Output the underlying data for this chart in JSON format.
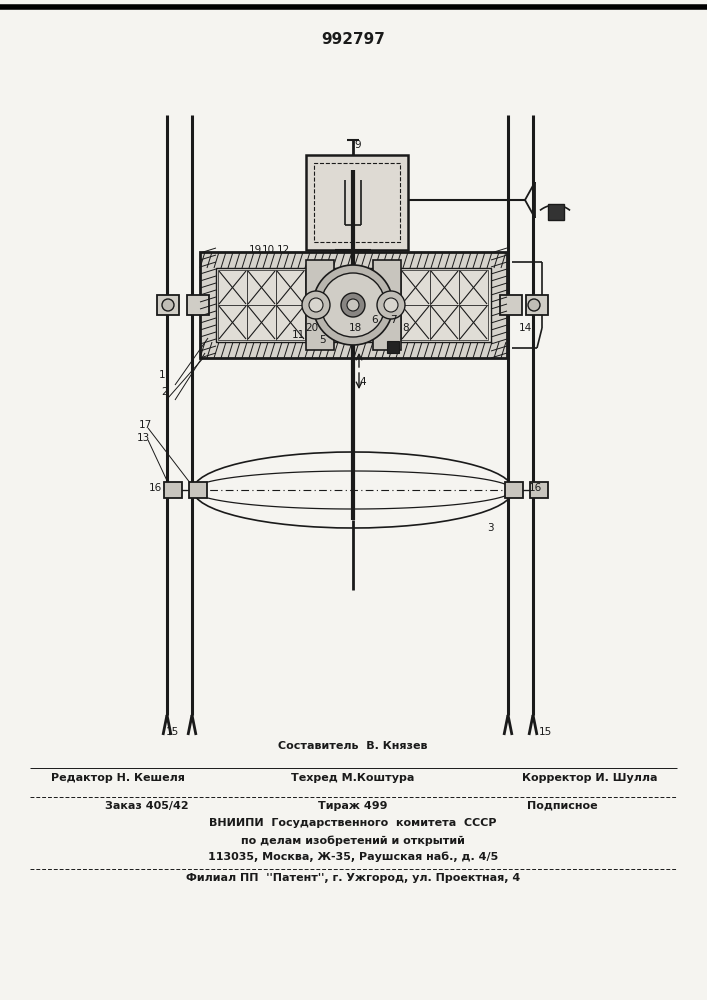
{
  "patent_number": "992797",
  "bg_color": "#f5f4f0",
  "lc": "#1a1a1a",
  "bottom": {
    "составитель": "Составитель  В. Князев",
    "редактор": "Редактор Н. Кешеля",
    "техред": "Техред М.Коштура",
    "корректор": "Корректор И. Шулла",
    "заказ": "Заказ 405/42",
    "тираж": "Тираж 499",
    "подписное": "Подписное",
    "вниипи": "ВНИИПИ  Государственного  комитета  СССР",
    "делам": "по делам изобретений и открытий",
    "адрес": "113035, Москва, Ж-35, Раушская наб., д. 4/5",
    "филиал": "Филиал ПП  ''Патент'', г. Ужгород, ул. Проектная, 4"
  }
}
